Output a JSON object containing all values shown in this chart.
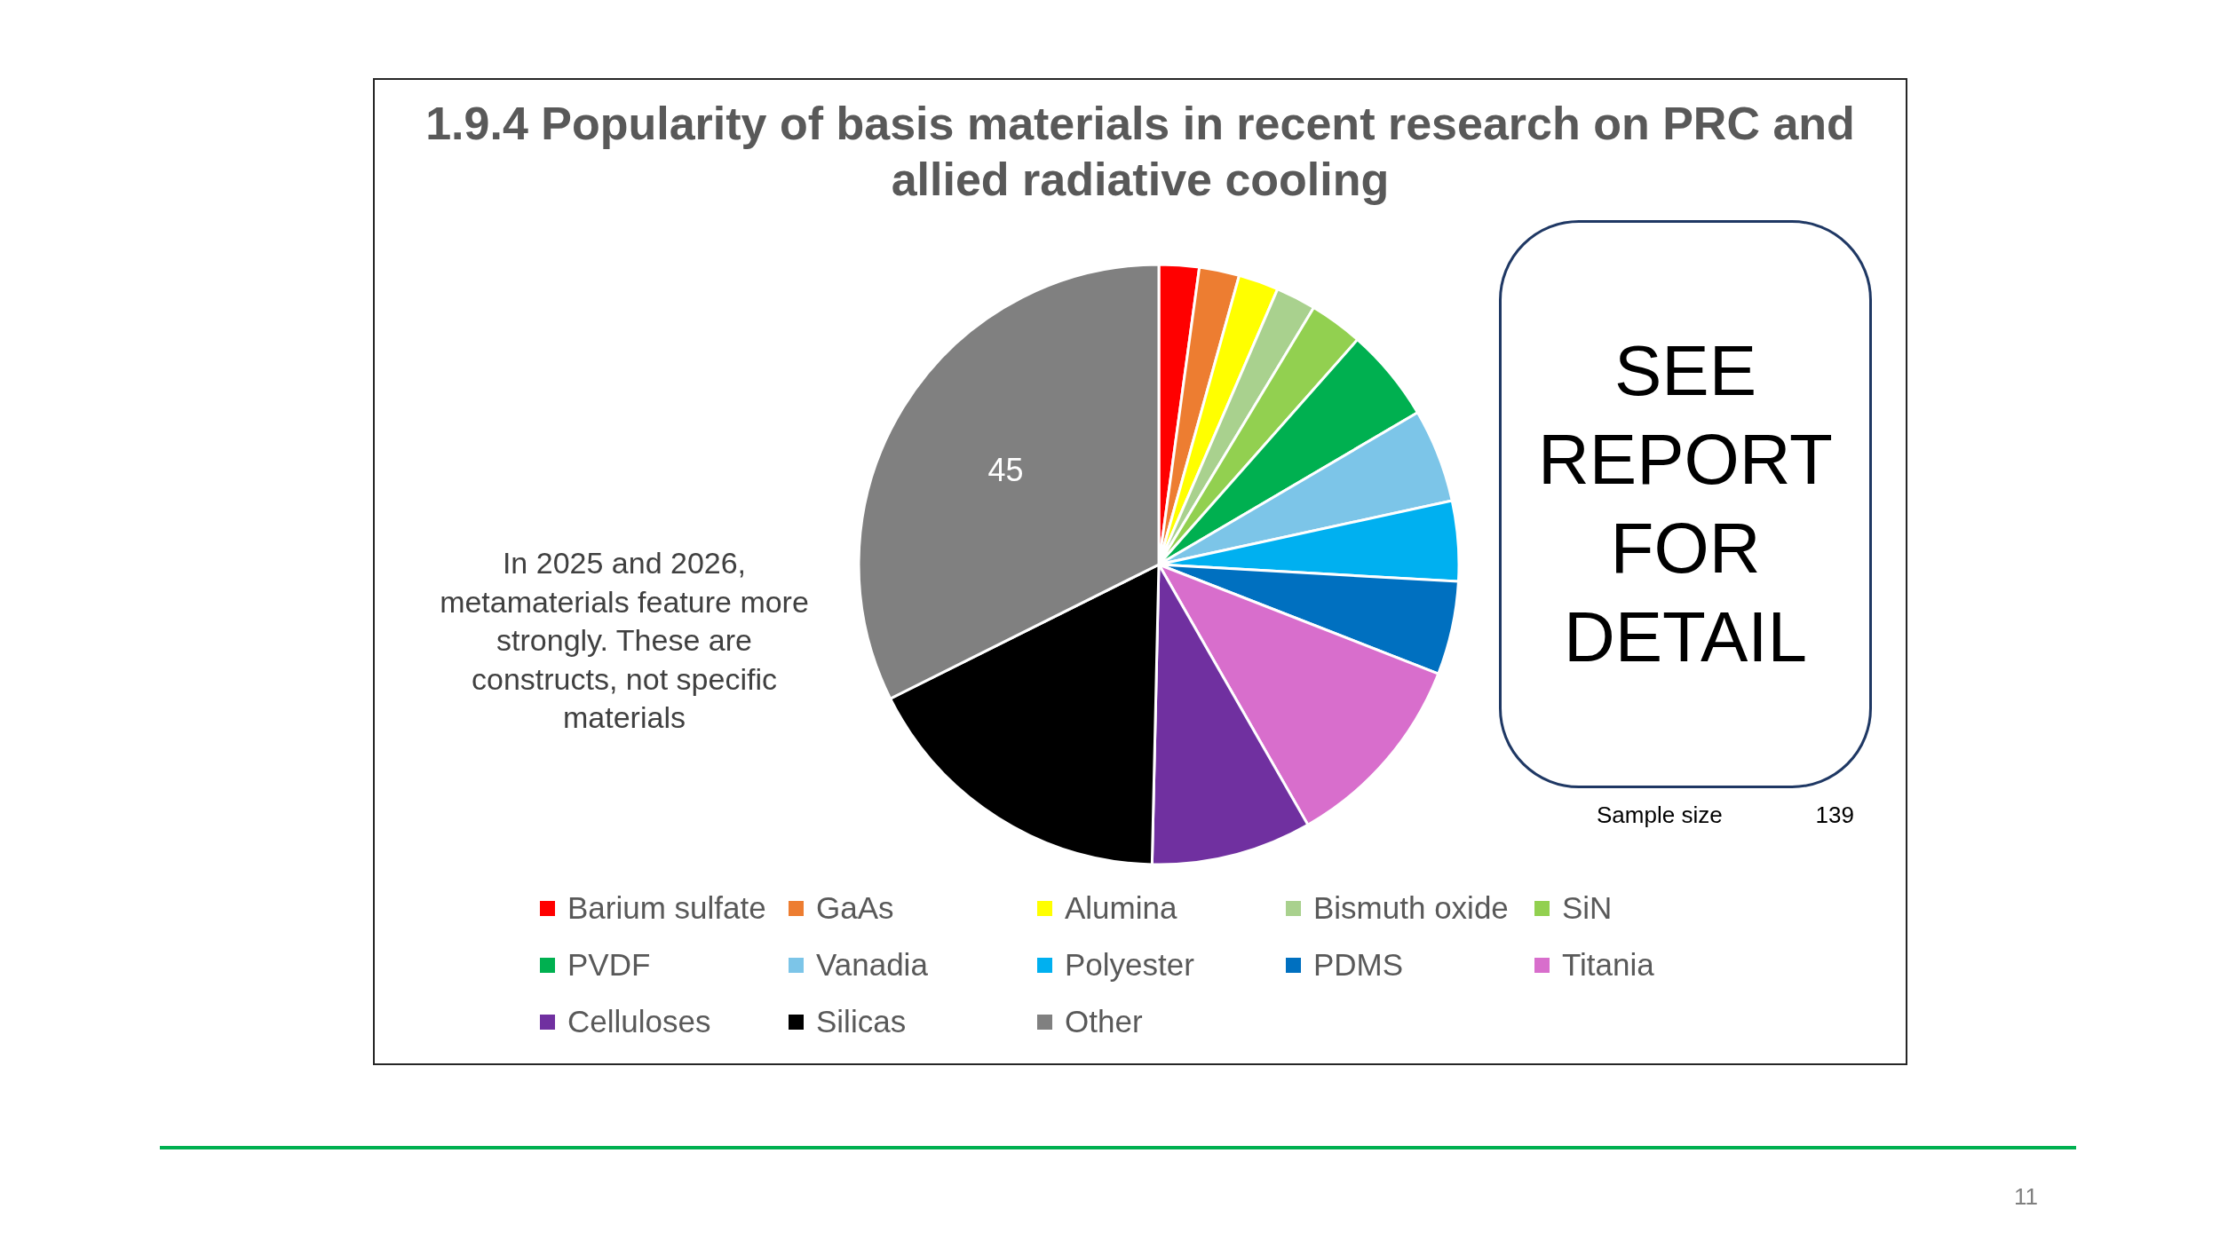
{
  "chart_data": {
    "type": "pie",
    "title": "1.9.4 Popularity of basis materials in recent research on PRC and allied radiative cooling",
    "categories": [
      "Barium sulfate",
      "GaAs",
      "Alumina",
      "Bismuth oxide",
      "SiN",
      "PVDF",
      "Vanadia",
      "Polyester",
      "PDMS",
      "Titania",
      "Celluloses",
      "Silicas",
      "Other"
    ],
    "values": [
      3,
      3,
      3,
      3,
      4,
      7,
      7,
      6,
      7,
      15,
      12,
      24,
      45
    ],
    "colors": [
      "#ff0000",
      "#ed7d31",
      "#ffff00",
      "#a9d18e",
      "#92d050",
      "#00b050",
      "#7cc5e8",
      "#00b0f0",
      "#0070c0",
      "#d86ecc",
      "#7030a0",
      "#000000",
      "#808080"
    ],
    "value_labels": [
      null,
      null,
      null,
      null,
      null,
      null,
      null,
      null,
      null,
      null,
      null,
      null,
      "45"
    ],
    "legend": "bottom",
    "annotations": [
      "In 2025 and 2026, metamaterials feature more strongly. These are constructs, not specific materials",
      "SEE REPORT FOR DETAIL",
      "Sample size",
      "139",
      "11"
    ]
  }
}
